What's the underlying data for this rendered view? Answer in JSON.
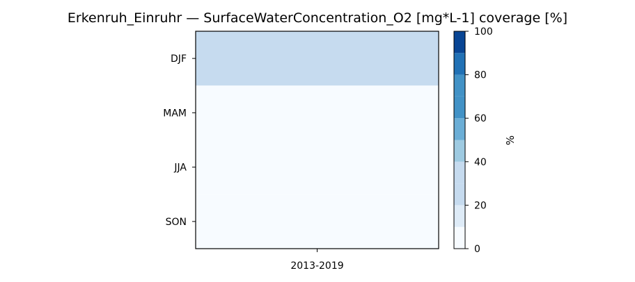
{
  "chart_data": {
    "type": "heatmap",
    "title": "Erkenruh_Einruhr — SurfaceWaterConcentration_O2 [mg*L-1] coverage [%]",
    "x_categories": [
      "2013-2019"
    ],
    "y_categories": [
      "DJF",
      "MAM",
      "JJA",
      "SON"
    ],
    "values": [
      [
        20
      ],
      [
        0
      ],
      [
        0
      ],
      [
        0
      ]
    ],
    "colorbar": {
      "label": "%",
      "min": 0,
      "max": 100,
      "ticks": [
        "0",
        "20",
        "40",
        "60",
        "80",
        "100"
      ],
      "levels": [
        {
          "from": 0,
          "to": 10,
          "color": "#f7fbff"
        },
        {
          "from": 10,
          "to": 20,
          "color": "#deebf7"
        },
        {
          "from": 20,
          "to": 30,
          "color": "#c6dbef"
        },
        {
          "from": 30,
          "to": 40,
          "color": "#c6dbef"
        },
        {
          "from": 40,
          "to": 50,
          "color": "#9ecae1"
        },
        {
          "from": 50,
          "to": 60,
          "color": "#6baed6"
        },
        {
          "from": 60,
          "to": 70,
          "color": "#4292c6"
        },
        {
          "from": 70,
          "to": 80,
          "color": "#4292c6"
        },
        {
          "from": 80,
          "to": 90,
          "color": "#2171b5"
        },
        {
          "from": 90,
          "to": 100,
          "color": "#084594"
        }
      ]
    }
  }
}
